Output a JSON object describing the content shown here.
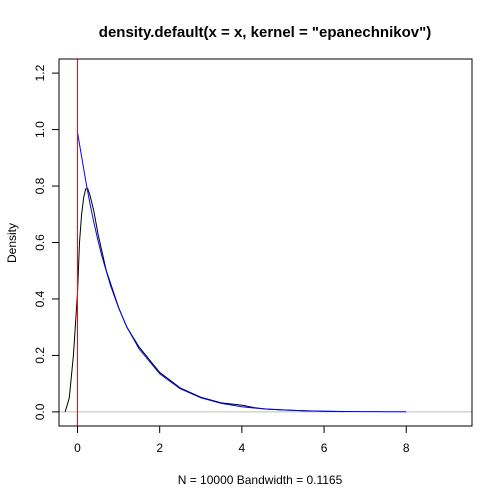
{
  "chart_data": {
    "type": "line",
    "title": "density.default(x = x, kernel = \"epanechnikov\")",
    "xlabel": "N = 10000   Bandwidth = 0.1165",
    "ylabel": "Density",
    "xlim": [
      -0.45,
      9.6
    ],
    "ylim": [
      -0.05,
      1.25
    ],
    "x_ticks": [
      0,
      2,
      4,
      6,
      8
    ],
    "y_ticks": [
      0.0,
      0.2,
      0.4,
      0.6,
      0.8,
      1.0,
      1.2
    ],
    "x_tick_labels": [
      "0",
      "2",
      "4",
      "6",
      "8"
    ],
    "y_tick_labels": [
      "0.0",
      "0.2",
      "0.4",
      "0.6",
      "0.8",
      "1.0",
      "1.2"
    ],
    "baseline_y": 0,
    "vline_x": 0,
    "colors": {
      "density": "#000000",
      "exponential": "#0000ff",
      "vline": "#ff0000",
      "baseline": "#bebebe",
      "box": "#000000"
    },
    "series": [
      {
        "x": [
          -0.3,
          -0.2,
          -0.1,
          0.0,
          0.05,
          0.1,
          0.15,
          0.2,
          0.25,
          0.3,
          0.4,
          0.5,
          0.7,
          1.0,
          1.2,
          1.5,
          2.0,
          2.5,
          3.0,
          3.5,
          4.0,
          4.3,
          4.6,
          5.0,
          5.5,
          6.0,
          6.5
        ],
        "y": [
          0.0,
          0.05,
          0.2,
          0.42,
          0.6,
          0.7,
          0.76,
          0.79,
          0.79,
          0.77,
          0.71,
          0.63,
          0.5,
          0.37,
          0.3,
          0.23,
          0.14,
          0.085,
          0.052,
          0.032,
          0.024,
          0.015,
          0.01,
          0.007,
          0.004,
          0.002,
          0.001
        ]
      },
      {
        "x": [
          0.0,
          0.1,
          0.2,
          0.3,
          0.4,
          0.5,
          0.6,
          0.8,
          1.0,
          1.2,
          1.5,
          2.0,
          2.5,
          3.0,
          3.5,
          4.0,
          4.5,
          5.0,
          5.5,
          6.0,
          6.5,
          7.0,
          7.5,
          8.0
        ],
        "y": [
          0.99,
          0.905,
          0.819,
          0.741,
          0.67,
          0.607,
          0.549,
          0.449,
          0.368,
          0.301,
          0.223,
          0.135,
          0.082,
          0.05,
          0.03,
          0.018,
          0.011,
          0.0067,
          0.0041,
          0.0025,
          0.0015,
          0.0009,
          0.0006,
          0.0003
        ]
      }
    ]
  }
}
